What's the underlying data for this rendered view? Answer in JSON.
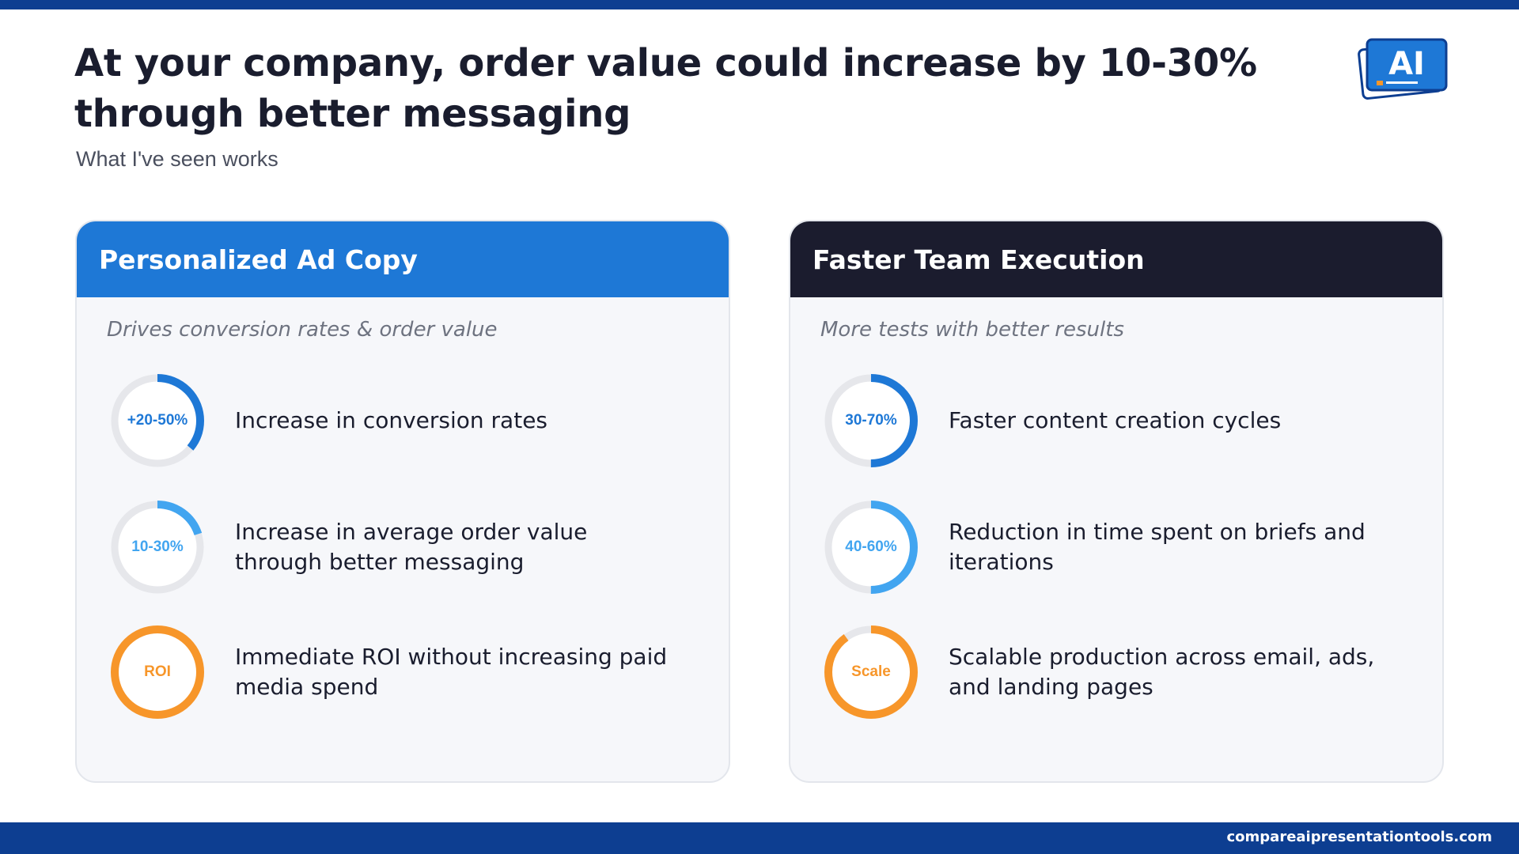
{
  "slide": {
    "title": "At your company, order value could increase by 10-30% through better messaging",
    "subtitle": "What I've seen works",
    "logo_text": "AI",
    "footer_url": "compareaipresentationtools.com"
  },
  "colors": {
    "accent_blue": "#1e78d6",
    "light_blue": "#42a5f0",
    "orange": "#f7962a",
    "dark_navy": "#1b1c2e",
    "bar_blue": "#0d3e91",
    "ring_track": "#e6e7eb"
  },
  "cards": [
    {
      "header": "Personalized Ad Copy",
      "tagline": "Drives conversion rates & order value",
      "metrics": [
        {
          "value_label": "+20-50%",
          "description": "Increase in conversion rates",
          "fill_fraction": 0.36,
          "color": "#1e78d6"
        },
        {
          "value_label": "10-30%",
          "description": "Increase in average order value through better messaging",
          "fill_fraction": 0.2,
          "color": "#42a5f0"
        },
        {
          "value_label": "ROI",
          "description": "Immediate ROI without increasing paid media spend",
          "fill_fraction": 1.0,
          "color": "#f7962a"
        }
      ]
    },
    {
      "header": "Faster Team Execution",
      "tagline": "More tests with better results",
      "metrics": [
        {
          "value_label": "30-70%",
          "description": "Faster content creation cycles",
          "fill_fraction": 0.5,
          "color": "#1e78d6"
        },
        {
          "value_label": "40-60%",
          "description": "Reduction in time spent on briefs and iterations",
          "fill_fraction": 0.5,
          "color": "#42a5f0"
        },
        {
          "value_label": "Scale",
          "description": "Scalable production across email, ads, and landing pages",
          "fill_fraction": 0.9,
          "color": "#f7962a"
        }
      ]
    }
  ]
}
